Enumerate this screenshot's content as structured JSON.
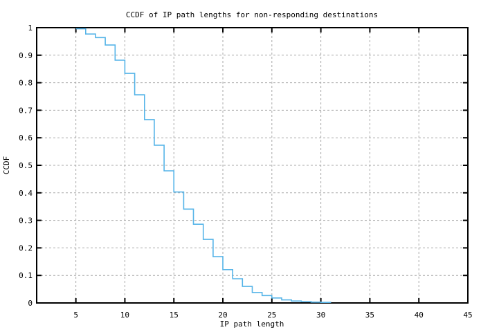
{
  "chart_data": {
    "type": "line",
    "style": "steps",
    "title": "CCDF of IP path lengths for non-responding destinations",
    "xlabel": "IP path length",
    "ylabel": "CCDF",
    "x": [
      5,
      6,
      7,
      8,
      9,
      10,
      11,
      12,
      13,
      14,
      15,
      16,
      17,
      18,
      19,
      20,
      21,
      22,
      23,
      24,
      25,
      26,
      27,
      28,
      29,
      30,
      31
    ],
    "y": [
      0.996,
      0.977,
      0.964,
      0.937,
      0.882,
      0.834,
      0.756,
      0.666,
      0.573,
      0.48,
      0.403,
      0.341,
      0.286,
      0.231,
      0.168,
      0.121,
      0.088,
      0.06,
      0.038,
      0.027,
      0.018,
      0.011,
      0.007,
      0.005,
      0.003,
      0.002,
      0.001
    ],
    "xlim": [
      1,
      45
    ],
    "ylim": [
      0,
      1
    ],
    "xticks": [
      5,
      10,
      15,
      20,
      25,
      30,
      35,
      40,
      45
    ],
    "xtick_labels": [
      "5",
      "10",
      "15",
      "20",
      "25",
      "30",
      "35",
      "40",
      "45"
    ],
    "yticks": [
      0,
      0.1,
      0.2,
      0.3,
      0.4,
      0.5,
      0.6,
      0.7,
      0.8,
      0.9,
      1
    ],
    "ytick_labels": [
      "0",
      "0.1",
      "0.2",
      "0.3",
      "0.4",
      "0.5",
      "0.6",
      "0.7",
      "0.8",
      "0.9",
      "1"
    ],
    "grid": true,
    "legend": false,
    "colors": {
      "line": "#55b4e8",
      "grid": "#a8a8a8",
      "border": "#000000",
      "background": "#ffffff",
      "text": "#000000"
    }
  }
}
